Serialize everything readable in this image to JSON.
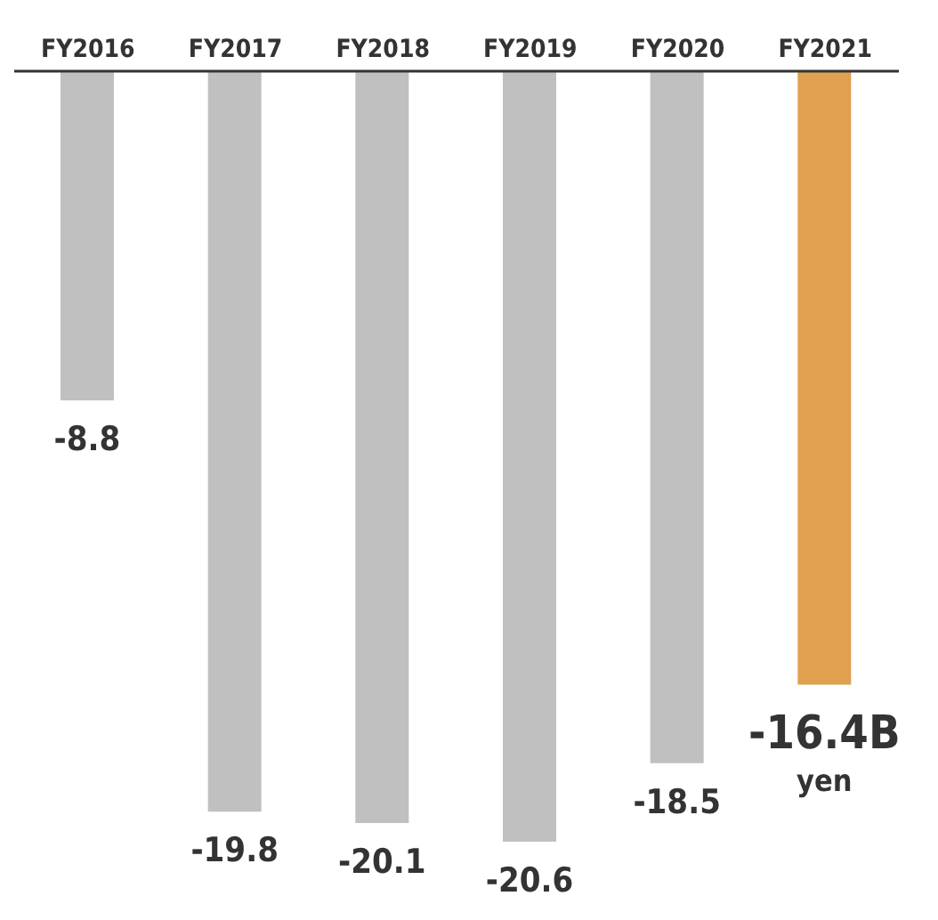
{
  "chart_data": {
    "type": "bar",
    "categories": [
      "FY2016",
      "FY2017",
      "FY2018",
      "FY2019",
      "FY2020",
      "FY2021"
    ],
    "values": [
      -8.8,
      -19.8,
      -20.1,
      -20.6,
      -18.5,
      -16.4
    ],
    "colors": [
      "#c0c0c0",
      "#c0c0c0",
      "#c0c0c0",
      "#c0c0c0",
      "#c0c0c0",
      "#e0a050"
    ],
    "value_labels": [
      "-8.8",
      "-19.8",
      "-20.1",
      "-20.6",
      "-18.5",
      "-16.4B yen"
    ],
    "grid": false,
    "legend": false
  }
}
